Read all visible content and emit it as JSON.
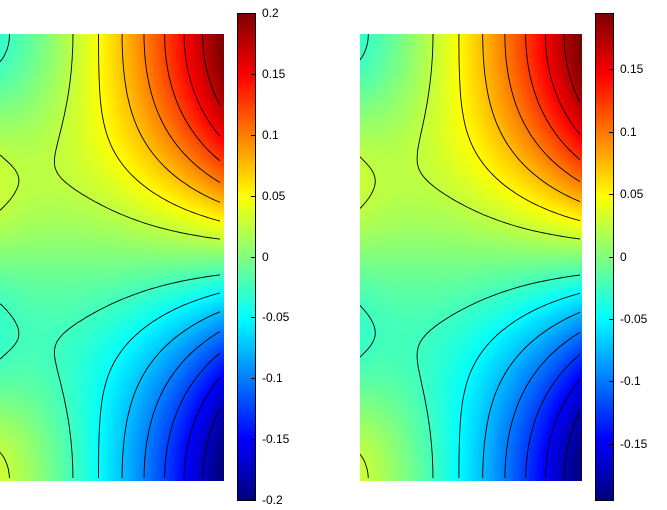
{
  "chart_data": [
    {
      "type": "heatmap",
      "title": "",
      "xlabel": "",
      "ylabel": "",
      "colormap": "jet",
      "colorbar": {
        "clim": [
          -0.2,
          0.2
        ],
        "ticks": [
          "0.2",
          "0.15",
          "0.1",
          "0.05",
          "0",
          "-0.05",
          "-0.1",
          "-0.15",
          "-0.2"
        ],
        "tick_values": [
          0.2,
          0.15,
          0.1,
          0.05,
          0,
          -0.05,
          -0.1,
          -0.15,
          -0.2
        ]
      },
      "field": "antisymmetric dipole pattern: positive maximum at upper-right, negative minimum at lower-right, near zero along the horizontal midline",
      "peak_max": 0.2,
      "peak_min": -0.2,
      "contour_levels": [
        -0.175,
        -0.15,
        -0.125,
        -0.1,
        -0.075,
        -0.05,
        -0.025,
        0.025,
        0.05,
        0.075,
        0.1,
        0.125,
        0.15,
        0.175
      ]
    },
    {
      "type": "heatmap",
      "title": "",
      "xlabel": "",
      "ylabel": "",
      "colormap": "jet",
      "colorbar": {
        "clim": [
          -0.195,
          0.195
        ],
        "ticks": [
          "0.15",
          "0.1",
          "0.05",
          "0",
          "-0.05",
          "-0.1",
          "-0.15"
        ],
        "tick_values": [
          0.15,
          0.1,
          0.05,
          0,
          -0.05,
          -0.1,
          -0.15
        ]
      },
      "field": "antisymmetric dipole pattern: positive maximum at upper-right, negative minimum at lower-right, near zero along the horizontal midline",
      "peak_max": 0.195,
      "peak_min": -0.195,
      "contour_levels": [
        -0.175,
        -0.15,
        -0.125,
        -0.1,
        -0.075,
        -0.05,
        -0.025,
        0.025,
        0.05,
        0.075,
        0.1,
        0.125,
        0.15,
        0.175
      ]
    }
  ]
}
